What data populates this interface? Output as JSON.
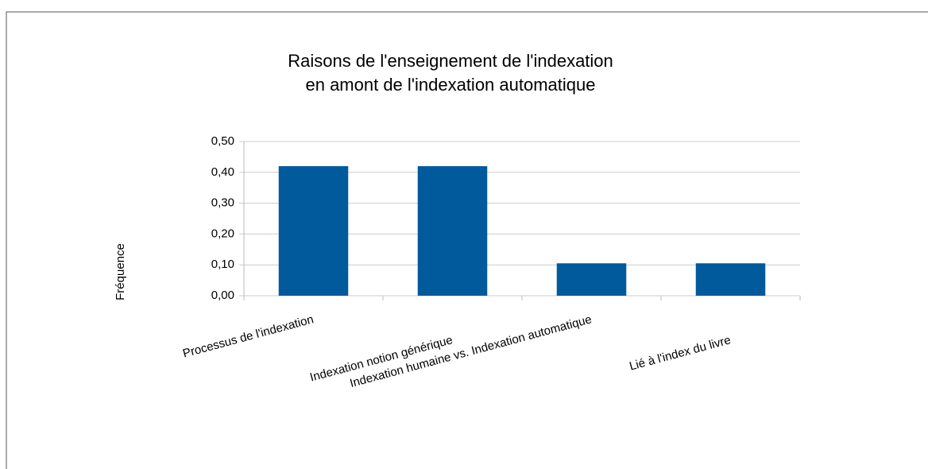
{
  "chart_data": {
    "type": "bar",
    "title": [
      "Raisons de l'enseignement de l'indexation",
      "en amont de l'indexation automatique"
    ],
    "y_label": "Fréquence",
    "categories": [
      "Processus de l'indexation",
      "Indexation notion générique",
      "Indexation humaine vs. Indexation automatique",
      "Lié à l'index du livre"
    ],
    "values": [
      0.42,
      0.42,
      0.105,
      0.105
    ],
    "color": "#005a9c",
    "ylim": [
      0,
      0.5
    ],
    "yticks": [
      {
        "value": 0,
        "label": "0,00"
      },
      {
        "value": 0.1,
        "label": "0,10"
      },
      {
        "value": 0.2,
        "label": "0,20"
      },
      {
        "value": 0.3,
        "label": "0,30"
      },
      {
        "value": 0.4,
        "label": "0,40"
      },
      {
        "value": 0.5,
        "label": "0,50"
      }
    ],
    "grid": true
  }
}
